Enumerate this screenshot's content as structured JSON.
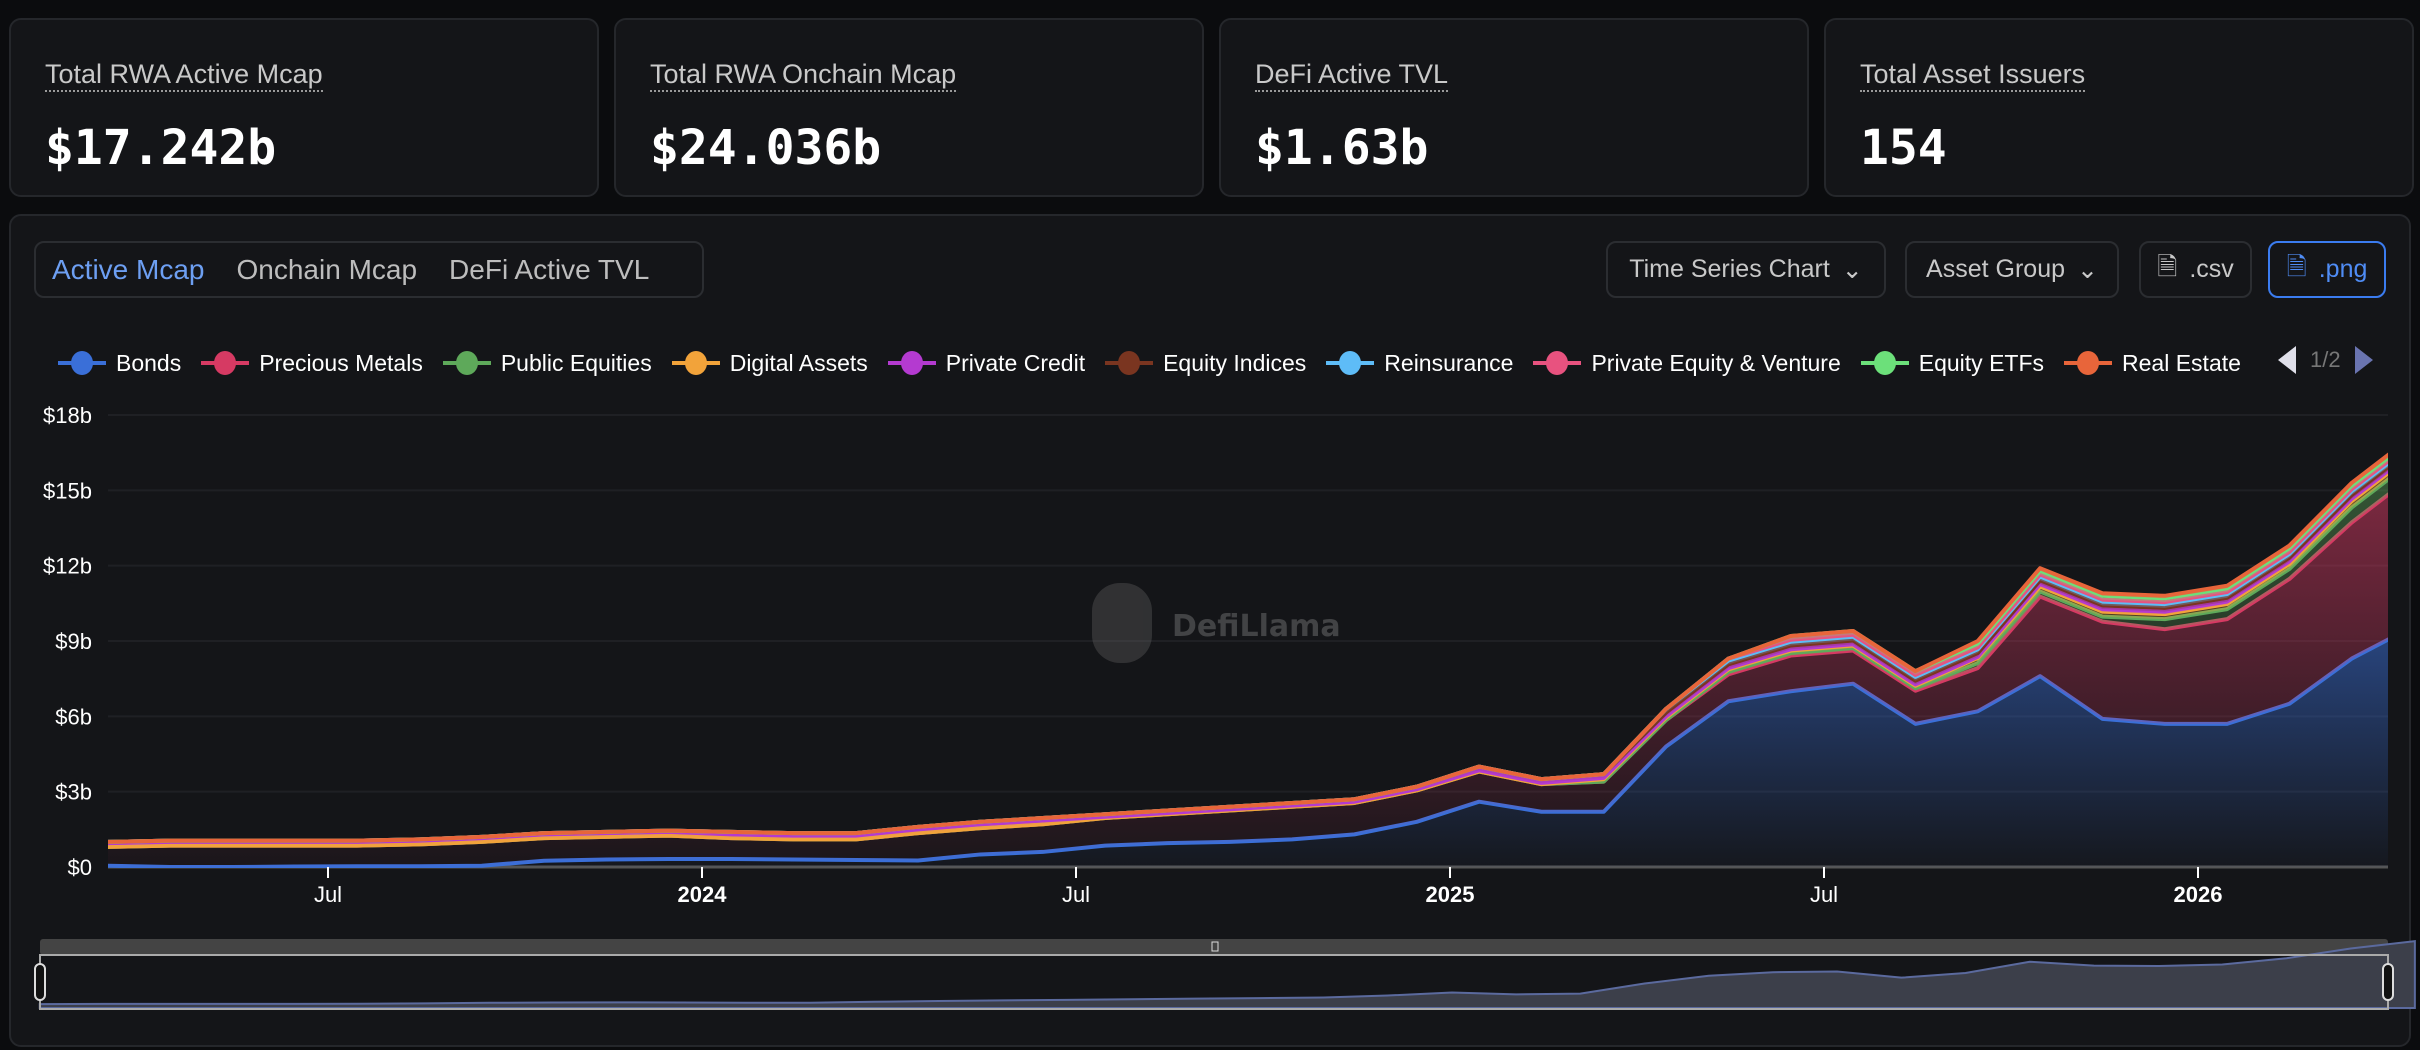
{
  "cards": [
    {
      "label": "Total RWA Active Mcap",
      "value": "$17.242b"
    },
    {
      "label": "Total RWA Onchain Mcap",
      "value": "$24.036b"
    },
    {
      "label": "DeFi Active TVL",
      "value": "$1.63b"
    },
    {
      "label": "Total Asset Issuers",
      "value": "154"
    }
  ],
  "tabs": [
    {
      "label": "Active Mcap",
      "active": true
    },
    {
      "label": "Onchain Mcap"
    },
    {
      "label": "DeFi Active TVL"
    }
  ],
  "toolbar": {
    "chart_type": "Time Series Chart",
    "group": "Asset Group",
    "csv": ".csv",
    "png": ".png"
  },
  "legend_page": "1/2",
  "watermark": "DefiLlama",
  "chart_data": {
    "type": "area",
    "stacked": true,
    "ylim": [
      0,
      18
    ],
    "yticks": [
      "$0",
      "$3b",
      "$6b",
      "$9b",
      "$12b",
      "$15b",
      "$18b"
    ],
    "ytick_values": [
      0,
      3,
      6,
      9,
      12,
      15,
      18
    ],
    "xticks": [
      {
        "label": "Jul",
        "date": "2023-07-01"
      },
      {
        "label": "2024",
        "date": "2024-01-01",
        "bold": true
      },
      {
        "label": "Jul",
        "date": "2024-07-01"
      },
      {
        "label": "2025",
        "date": "2025-01-01",
        "bold": true
      },
      {
        "label": "Jul",
        "date": "2025-07-01"
      },
      {
        "label": "2026",
        "date": "2026-01-01",
        "bold": true
      }
    ],
    "grid": true,
    "legend_position": "top",
    "x": [
      "2023-03",
      "2023-04",
      "2023-05",
      "2023-06",
      "2023-07",
      "2023-08",
      "2023-09",
      "2023-10",
      "2023-11",
      "2023-12",
      "2024-01",
      "2024-02",
      "2024-03",
      "2024-04",
      "2024-05",
      "2024-06",
      "2024-07",
      "2024-08",
      "2024-09",
      "2024-10",
      "2024-11",
      "2024-12",
      "2025-01",
      "2025-02",
      "2025-03",
      "2025-04",
      "2025-05",
      "2025-06",
      "2025-07",
      "2025-08",
      "2025-09",
      "2025-10",
      "2025-11",
      "2025-12",
      "2026-01",
      "2026-02",
      "2026-03",
      "2026-04"
    ],
    "series": [
      {
        "name": "Bonds",
        "color": "#3a6fd8",
        "values": [
          0.05,
          0,
          0,
          0.02,
          0.03,
          0.03,
          0.05,
          0.25,
          0.3,
          0.32,
          0.32,
          0.3,
          0.28,
          0.26,
          0.5,
          0.6,
          0.85,
          0.95,
          1.0,
          1.1,
          1.3,
          1.8,
          2.6,
          2.2,
          2.2,
          4.8,
          6.6,
          7.0,
          7.3,
          5.7,
          6.2,
          7.6,
          5.9,
          5.7,
          5.7,
          6.5,
          8.3,
          9.6
        ]
      },
      {
        "name": "Precious Metals",
        "color": "#d63a63",
        "values": [
          0.75,
          0.85,
          0.85,
          0.83,
          0.82,
          0.87,
          0.95,
          0.9,
          0.9,
          0.93,
          0.83,
          0.8,
          0.82,
          1.09,
          1.05,
          1.1,
          1.1,
          1.15,
          1.25,
          1.3,
          1.25,
          1.25,
          1.2,
          1.1,
          1.2,
          1.05,
          1.07,
          1.42,
          1.32,
          1.32,
          1.72,
          3.17,
          3.87,
          3.77,
          4.17,
          4.97,
          5.42,
          6.02
        ]
      },
      {
        "name": "Public Equities",
        "color": "#5ea95a",
        "values": [
          0,
          0,
          0,
          0,
          0,
          0,
          0,
          0,
          0,
          0,
          0,
          0,
          0,
          0,
          0,
          0,
          0,
          0,
          0,
          0,
          0,
          0,
          0,
          0,
          0,
          0,
          0.1,
          0.1,
          0.1,
          0.1,
          0.2,
          0.2,
          0.2,
          0.4,
          0.4,
          0.4,
          0.6,
          0.6
        ]
      },
      {
        "name": "Digital Assets",
        "color": "#f2a33a",
        "values": [
          0,
          0,
          0,
          0,
          0,
          0,
          0,
          0,
          0,
          0,
          0,
          0,
          0,
          0,
          0,
          0,
          0,
          0,
          0,
          0,
          0,
          0,
          0,
          0,
          0.1,
          0.1,
          0.1,
          0.1,
          0.1,
          0.1,
          0.2,
          0.2,
          0.2,
          0.2,
          0.2,
          0.2,
          0.25,
          0.25
        ]
      },
      {
        "name": "Private Credit",
        "color": "#b43ad0",
        "values": [
          0.15,
          0.15,
          0.15,
          0.15,
          0.15,
          0.15,
          0.15,
          0.15,
          0.15,
          0.15,
          0.15,
          0.15,
          0.15,
          0.15,
          0.15,
          0.15,
          0.05,
          0.05,
          0.05,
          0.05,
          0.05,
          0.05,
          0.05,
          0.05,
          0.05,
          0.05,
          0.05,
          0.05,
          0.05,
          0.05,
          0.05,
          0.1,
          0.1,
          0.1,
          0.1,
          0.1,
          0.1,
          0.1
        ]
      },
      {
        "name": "Equity Indices",
        "color": "#7a3520",
        "values": [
          0.05,
          0.05,
          0.05,
          0.05,
          0.05,
          0.05,
          0.05,
          0.05,
          0.05,
          0.05,
          0.1,
          0.1,
          0.1,
          0.1,
          0.1,
          0.1,
          0.1,
          0.1,
          0.1,
          0.1,
          0.1,
          0.1,
          0.15,
          0.15,
          0.15,
          0.15,
          0.15,
          0.15,
          0.15,
          0.15,
          0.15,
          0.15,
          0.15,
          0.15,
          0.15,
          0.15,
          0.15,
          0.15
        ]
      },
      {
        "name": "Reinsurance",
        "color": "#5ebcf7",
        "values": [
          0,
          0,
          0,
          0,
          0,
          0,
          0,
          0,
          0,
          0,
          0,
          0,
          0,
          0,
          0,
          0,
          0,
          0,
          0,
          0,
          0,
          0,
          0,
          0,
          0,
          0.15,
          0.15,
          0.15,
          0.15,
          0.15,
          0.15,
          0.15,
          0.15,
          0.15,
          0.15,
          0.15,
          0.15,
          0.15
        ]
      },
      {
        "name": "Private Equity & Venture",
        "color": "#e8527f",
        "values": [
          0,
          0,
          0,
          0,
          0,
          0,
          0,
          0,
          0,
          0,
          0,
          0,
          0,
          0,
          0,
          0,
          0,
          0,
          0,
          0,
          0,
          0,
          0,
          0,
          0,
          0,
          0.08,
          0.08,
          0.08,
          0.08,
          0.08,
          0.08,
          0.08,
          0.08,
          0.08,
          0.08,
          0.08,
          0.08
        ]
      },
      {
        "name": "Equity ETFs",
        "color": "#6ce07a",
        "values": [
          0,
          0,
          0,
          0,
          0,
          0,
          0,
          0,
          0,
          0,
          0,
          0,
          0,
          0,
          0,
          0,
          0,
          0,
          0,
          0,
          0,
          0,
          0,
          0,
          0,
          0,
          0,
          0.15,
          0.15,
          0.15,
          0.15,
          0.15,
          0.15,
          0.15,
          0.15,
          0.15,
          0.15,
          0.15
        ]
      },
      {
        "name": "Real Estate",
        "color": "#e8653a",
        "values": [
          0,
          0,
          0,
          0,
          0,
          0,
          0,
          0,
          0,
          0,
          0,
          0,
          0,
          0,
          0,
          0,
          0,
          0,
          0,
          0,
          0,
          0,
          0,
          0,
          0,
          0,
          0,
          0,
          0,
          0,
          0.1,
          0.1,
          0.1,
          0.1,
          0.1,
          0.1,
          0.1,
          0.1
        ]
      }
    ]
  }
}
